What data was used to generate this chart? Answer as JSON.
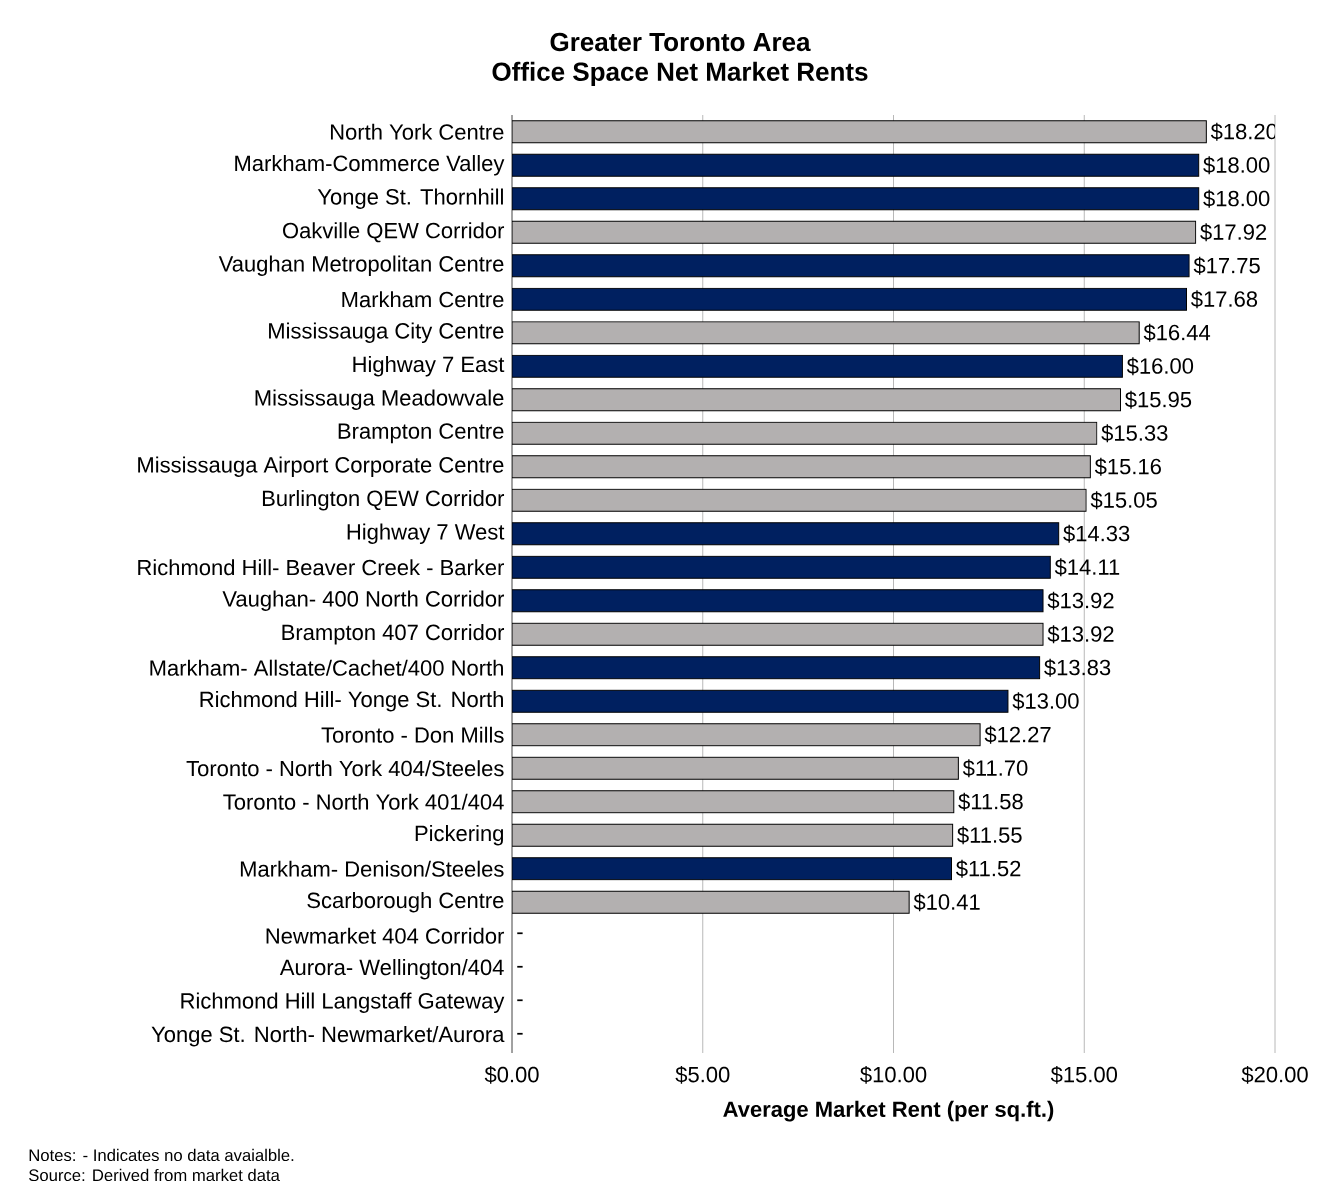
{
  "chart_data": {
    "type": "bar",
    "orientation": "horizontal",
    "title": "Greater Toronto Area",
    "subtitle": "Office Space Net Market Rents",
    "xlabel": "Average Market Rent (per sq.ft.)",
    "categories": [
      "North York Centre",
      "Markham-Commerce Valley",
      "Yonge St. Thornhill",
      "Oakville QEW Corridor",
      "Vaughan Metropolitan Centre",
      "Markham Centre",
      "Mississauga City Centre",
      "Highway 7 East",
      "Mississauga Meadowvale",
      "Brampton Centre",
      "Mississauga Airport Corporate Centre",
      "Burlington QEW Corridor",
      "Highway 7 West",
      "Richmond Hill- Beaver Creek - Barker",
      "Vaughan- 400 North Corridor",
      "Brampton 407 Corridor",
      "Markham- Allstate/Cachet/400 North",
      "Richmond Hill- Yonge St. North",
      "Toronto - Don Mills",
      "Toronto - North York 404/Steeles",
      "Toronto - North York 401/404",
      "Pickering",
      "Markham- Denison/Steeles",
      "Scarborough Centre",
      "Newmarket 404 Corridor",
      "Aurora- Wellington/404",
      "Richmond Hill Langstaff Gateway",
      "Yonge St. North- Newmarket/Aurora"
    ],
    "values": [
      18.2,
      18.0,
      18.0,
      17.92,
      17.75,
      17.68,
      16.44,
      16.0,
      15.95,
      15.33,
      15.16,
      15.05,
      14.33,
      14.11,
      13.92,
      13.92,
      13.83,
      13.0,
      12.27,
      11.7,
      11.58,
      11.55,
      11.52,
      10.41,
      null,
      null,
      null,
      null
    ],
    "value_labels": [
      "$18.20",
      "$18.00",
      "$18.00",
      "$17.92",
      "$17.75",
      "$17.68",
      "$16.44",
      "$16.00",
      "$15.95",
      "$15.33",
      "$15.16",
      "$15.05",
      "$14.33",
      "$14.11",
      "$13.92",
      "$13.92",
      "$13.83",
      "$13.00",
      "$12.27",
      "$11.70",
      "$11.58",
      "$11.55",
      "$11.52",
      "$10.41",
      "-",
      "-",
      "-",
      "-"
    ],
    "colors": [
      "#b3b0b0",
      "#002060",
      "#002060",
      "#b3b0b0",
      "#002060",
      "#002060",
      "#b3b0b0",
      "#002060",
      "#b3b0b0",
      "#b3b0b0",
      "#b3b0b0",
      "#b3b0b0",
      "#002060",
      "#002060",
      "#002060",
      "#b3b0b0",
      "#002060",
      "#002060",
      "#b3b0b0",
      "#b3b0b0",
      "#b3b0b0",
      "#b3b0b0",
      "#002060",
      "#b3b0b0",
      "#b3b0b0",
      "#b3b0b0",
      "#b3b0b0",
      "#b3b0b0"
    ],
    "xlim": [
      0,
      20
    ],
    "xticks": [
      {
        "value": 0,
        "label": "$0.00"
      },
      {
        "value": 5,
        "label": "$5.00"
      },
      {
        "value": 10,
        "label": "$10.00"
      },
      {
        "value": 15,
        "label": "$15.00"
      },
      {
        "value": 20,
        "label": "$20.00"
      }
    ],
    "grid": "x",
    "annotations": [
      "Notes: - Indicates no data avaialble.",
      "Source: Derived from market data"
    ]
  }
}
